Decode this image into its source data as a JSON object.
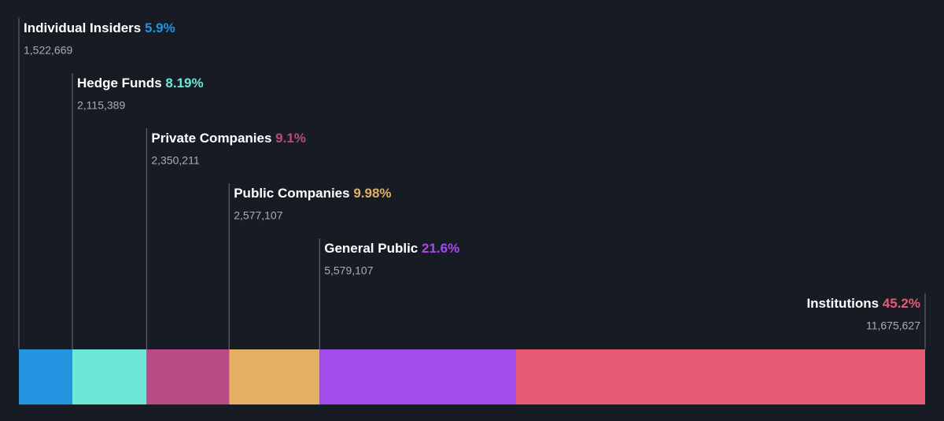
{
  "chart_data": {
    "type": "stacked-bar",
    "categories": [
      "Individual Insiders",
      "Hedge Funds",
      "Private Companies",
      "Public Companies",
      "General Public",
      "Institutions"
    ],
    "values": [
      5.9,
      8.19,
      9.1,
      9.98,
      21.6,
      45.2
    ],
    "value_labels": [
      "5.9%",
      "8.19%",
      "9.1%",
      "9.98%",
      "21.6%",
      "45.2%"
    ],
    "shares": [
      1522669,
      2115389,
      2350211,
      2577107,
      5579107,
      11675627
    ],
    "share_labels": [
      "1,522,669",
      "2,115,389",
      "2,350,211",
      "2,577,107",
      "5,579,107",
      "11,675,627"
    ],
    "colors": [
      "#2394df",
      "#6ee7d6",
      "#b94a86",
      "#e3b064",
      "#a34ceb",
      "#e65b73"
    ]
  }
}
